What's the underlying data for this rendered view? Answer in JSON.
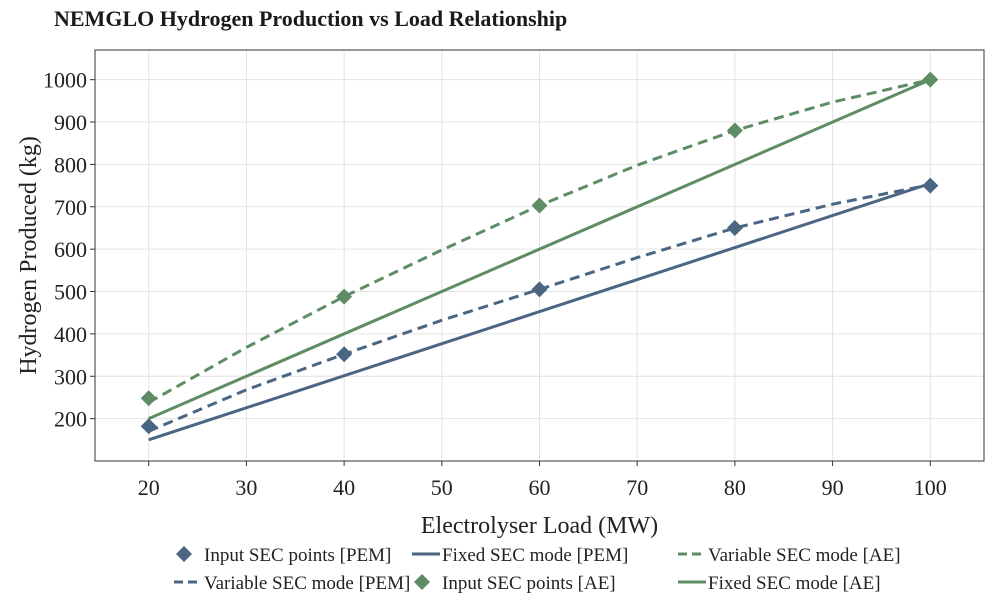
{
  "chart_data": {
    "type": "line",
    "title": "NEMGLO Hydrogen Production vs Load Relationship",
    "xlabel": "Electrolyser Load (MW)",
    "ylabel": "Hydrogen Produced (kg)",
    "xlim": [
      14.5,
      105.5
    ],
    "ylim": [
      100,
      1070
    ],
    "xticks": [
      20,
      30,
      40,
      50,
      60,
      70,
      80,
      90,
      100
    ],
    "yticks": [
      200,
      300,
      400,
      500,
      600,
      700,
      800,
      900,
      1000
    ],
    "grid": true,
    "legend_position": "bottom",
    "series": [
      {
        "name": "Input SEC points [PEM]",
        "kind": "markers",
        "marker": "diamond",
        "color": "#4a6682",
        "x": [
          20,
          40,
          60,
          80,
          100
        ],
        "y": [
          182,
          352,
          505,
          650,
          750
        ]
      },
      {
        "name": "Input SEC points [AE]",
        "kind": "markers",
        "marker": "diamond",
        "color": "#5e8c64",
        "x": [
          20,
          40,
          60,
          80,
          100
        ],
        "y": [
          248,
          488,
          703,
          880,
          1000
        ]
      },
      {
        "name": "Variable SEC mode [PEM]",
        "kind": "dashed-line",
        "color": "#4a6682",
        "x": [
          20,
          30,
          40,
          50,
          60,
          70,
          80,
          90,
          100
        ],
        "y": [
          170,
          268,
          352,
          432,
          505,
          580,
          650,
          706,
          752
        ]
      },
      {
        "name": "Variable SEC mode [AE]",
        "kind": "dashed-line",
        "color": "#5e8c64",
        "x": [
          20,
          30,
          40,
          50,
          60,
          70,
          80,
          90,
          100
        ],
        "y": [
          238,
          368,
          488,
          598,
          703,
          798,
          880,
          947,
          1000
        ]
      },
      {
        "name": "Fixed SEC mode [PEM]",
        "kind": "solid-line",
        "color": "#4a6682",
        "x": [
          20,
          100
        ],
        "y": [
          150,
          755
        ]
      },
      {
        "name": "Fixed SEC mode [AE]",
        "kind": "solid-line",
        "color": "#5e8c64",
        "x": [
          20,
          100
        ],
        "y": [
          200,
          1000
        ]
      }
    ],
    "legend_order": [
      0,
      2,
      4,
      1,
      3,
      5
    ]
  }
}
